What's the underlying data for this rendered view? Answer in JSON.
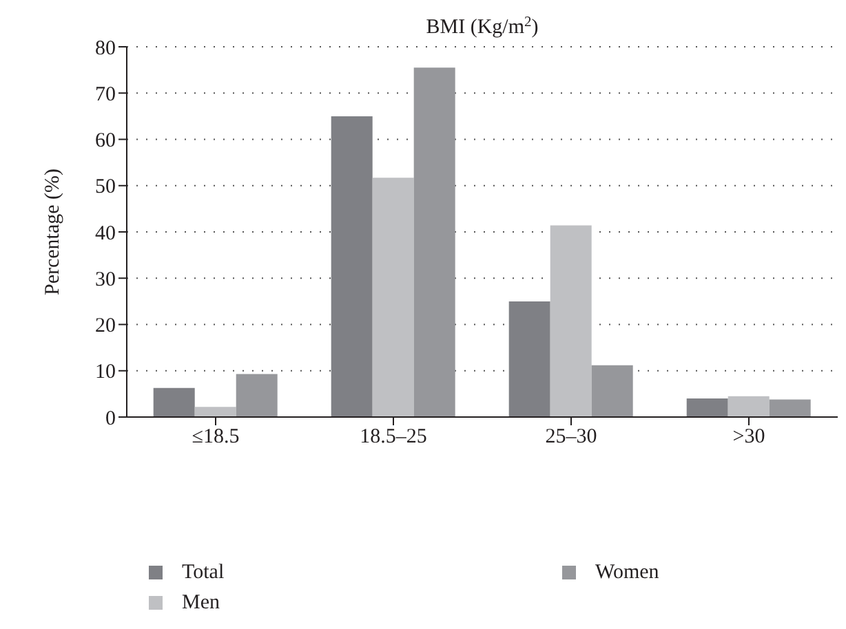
{
  "chart_data": {
    "type": "bar",
    "title": "BMI (Kg/m$^{2}$)",
    "ylabel": "Percentage (%)",
    "categories": [
      "≤18.5",
      "18.5–25",
      "25–30",
      ">30"
    ],
    "series": [
      {
        "name": "Total",
        "color": "#7f8085",
        "values": [
          6.3,
          65.0,
          25.0,
          4.0
        ]
      },
      {
        "name": "Men",
        "color": "#bfc0c3",
        "values": [
          2.2,
          51.7,
          41.4,
          4.5
        ]
      },
      {
        "name": "Women",
        "color": "#96979b",
        "values": [
          9.3,
          75.5,
          11.2,
          3.8
        ]
      }
    ],
    "ylim": [
      0,
      80
    ],
    "yticks": [
      0,
      10,
      20,
      30,
      40,
      50,
      60,
      70,
      80
    ],
    "grid": "y",
    "legend": "bottom"
  }
}
